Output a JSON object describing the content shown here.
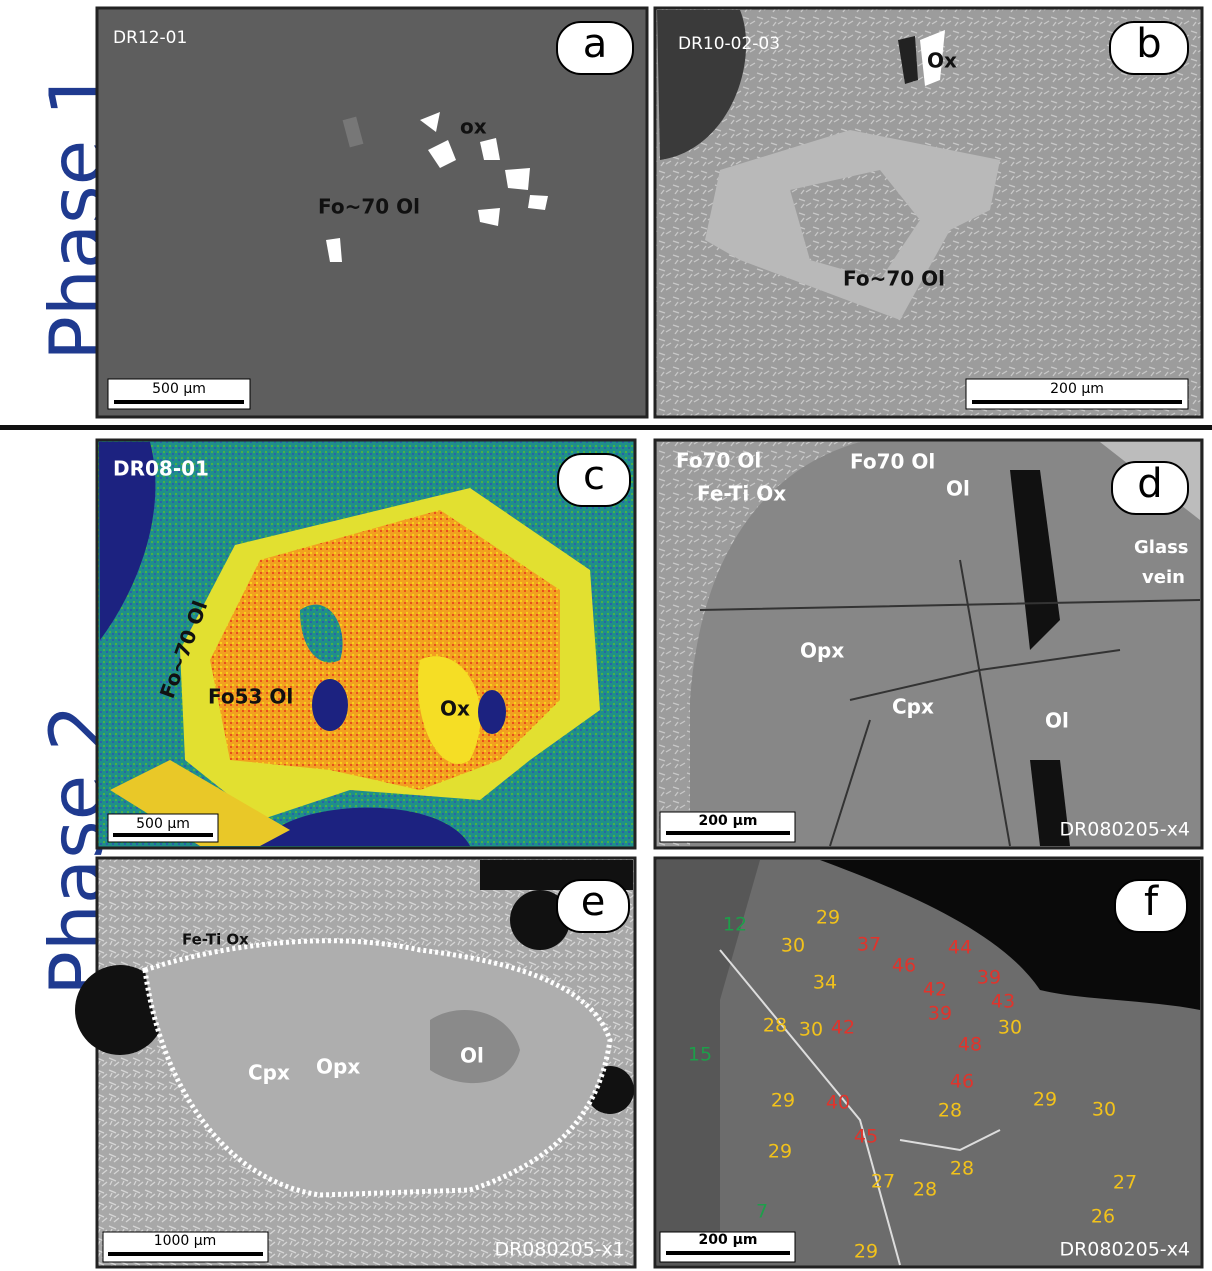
{
  "side_labels": [
    "Phase 1",
    "Phase 2"
  ],
  "panels": [
    {
      "letter": "a",
      "sample": "DR12-01",
      "scale_bar": "500 µm",
      "annotations": [
        "ox",
        "Fo~70 Ol"
      ]
    },
    {
      "letter": "b",
      "sample": "DR10-02-03",
      "scale_bar": "200 µm",
      "annotations": [
        "Ox",
        "Fo~70 Ol"
      ]
    },
    {
      "letter": "c",
      "sample": "DR08-01",
      "scale_bar": "500 µm",
      "annotations": [
        "Fo~70 Ol",
        "Fo53 Ol",
        "Ox"
      ]
    },
    {
      "letter": "d",
      "sample": "DR080205-x4",
      "scale_bar": "200 µm",
      "annotations": [
        "Fo70 Ol",
        "Fe-Ti Ox",
        "Fo70 Ol",
        "Ol",
        "Glass",
        "vein",
        "Opx",
        "Cpx",
        "Ol"
      ]
    },
    {
      "letter": "e",
      "sample": "DR080205-x1",
      "scale_bar": "1000 µm",
      "annotations": [
        "Fe-Ti Ox",
        "Ol",
        "Cpx",
        "Opx"
      ]
    },
    {
      "letter": "f",
      "sample": "DR080205-x4",
      "scale_bar": "200 µm",
      "numbers": [
        12,
        29,
        30,
        37,
        46,
        44,
        39,
        42,
        43,
        34,
        39,
        28,
        30,
        42,
        30,
        48,
        15,
        46,
        29,
        40,
        28,
        29,
        30,
        45,
        29,
        28,
        27,
        28,
        27,
        26,
        7,
        29
      ]
    }
  ]
}
